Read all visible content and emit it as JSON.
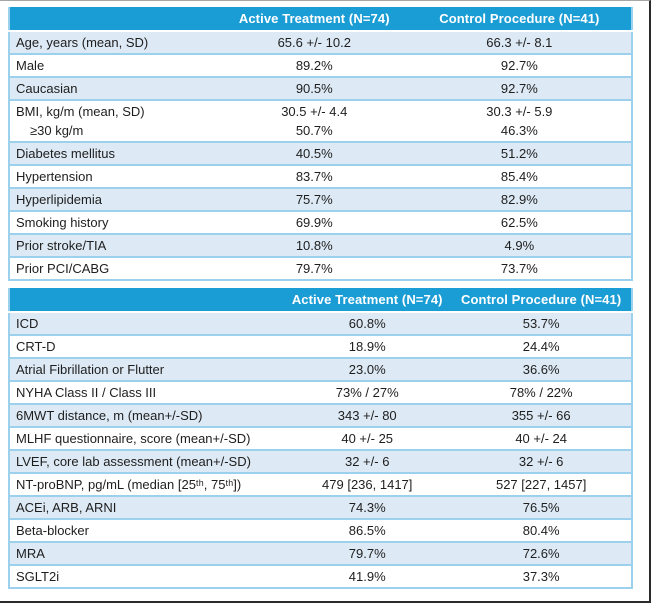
{
  "colors": {
    "header_bg": "#1a9cd5",
    "header_text": "#ffffff",
    "row_shaded_bg": "#dde9f4",
    "row_plain_bg": "#ffffff",
    "grid_line": "#9bd1ec",
    "body_text": "#1e1e1e"
  },
  "tables": [
    {
      "id": "baseline-characteristics-table",
      "columns": {
        "label": "",
        "active": "Active Treatment (N=74)",
        "control": "Control Procedure (N=41)"
      },
      "col_widths": [
        "34%",
        "30%",
        "36%"
      ],
      "rows": [
        {
          "label": "Age, years (mean, SD)",
          "active": "65.6 +/- 10.2",
          "control": "66.3 +/- 8.1",
          "shaded": true
        },
        {
          "label": "Male",
          "active": "89.2%",
          "control": "92.7%",
          "shaded": false
        },
        {
          "label": "Caucasian",
          "active": "90.5%",
          "control": "92.7%",
          "shaded": true
        },
        {
          "label": "BMI, kg/m (mean, SD)",
          "sub_label": "≥30 kg/m",
          "active": "30.5 +/- 4.4",
          "active_sub": "50.7%",
          "control": "30.3 +/- 5.9",
          "control_sub": "46.3%",
          "shaded": false
        },
        {
          "label": "Diabetes mellitus",
          "active": "40.5%",
          "control": "51.2%",
          "shaded": true
        },
        {
          "label": "Hypertension",
          "active": "83.7%",
          "control": "85.4%",
          "shaded": false
        },
        {
          "label": "Hyperlipidemia",
          "active": "75.7%",
          "control": "82.9%",
          "shaded": true
        },
        {
          "label": "Smoking history",
          "active": "69.9%",
          "control": "62.5%",
          "shaded": false
        },
        {
          "label": "Prior stroke/TIA",
          "active": "10.8%",
          "control": "4.9%",
          "shaded": true
        },
        {
          "label": "Prior PCI/CABG",
          "active": "79.7%",
          "control": "73.7%",
          "shaded": false
        }
      ]
    },
    {
      "id": "cardiac-status-medications-table",
      "columns": {
        "label": "",
        "active": "Active Treatment (N=74)",
        "control": "Control Procedure (N=41)"
      },
      "col_widths": [
        "44%",
        "27%",
        "29%"
      ],
      "rows": [
        {
          "label": "ICD",
          "active": "60.8%",
          "control": "53.7%",
          "shaded": true
        },
        {
          "label": "CRT-D",
          "active": "18.9%",
          "control": "24.4%",
          "shaded": false
        },
        {
          "label": "Atrial Fibrillation or Flutter",
          "active": "23.0%",
          "control": "36.6%",
          "shaded": true
        },
        {
          "label": "NYHA Class II / Class III",
          "active": "73% / 27%",
          "control": "78% / 22%",
          "shaded": false
        },
        {
          "label": "6MWT distance, m (mean+/-SD)",
          "active": "343 +/- 80",
          "control": "355 +/- 66",
          "shaded": true
        },
        {
          "label": "MLHF questionnaire, score (mean+/-SD)",
          "active": "40 +/- 25",
          "control": "40 +/- 24",
          "shaded": false
        },
        {
          "label": "LVEF, core lab assessment (mean+/-SD)",
          "active": "32 +/- 6",
          "control": "32 +/- 6",
          "shaded": true
        },
        {
          "label": "NT-proBNP, pg/mL (median [25ᵗʰ, 75ᵗʰ])",
          "active": "479 [236, 1417]",
          "control": "527 [227, 1457]",
          "shaded": false
        },
        {
          "label": "ACEi, ARB, ARNI",
          "active": "74.3%",
          "control": "76.5%",
          "shaded": true
        },
        {
          "label": "Beta-blocker",
          "active": "86.5%",
          "control": "80.4%",
          "shaded": false
        },
        {
          "label": "MRA",
          "active": "79.7%",
          "control": "72.6%",
          "shaded": true
        },
        {
          "label": "SGLT2i",
          "active": "41.9%",
          "control": "37.3%",
          "shaded": false
        }
      ]
    }
  ]
}
